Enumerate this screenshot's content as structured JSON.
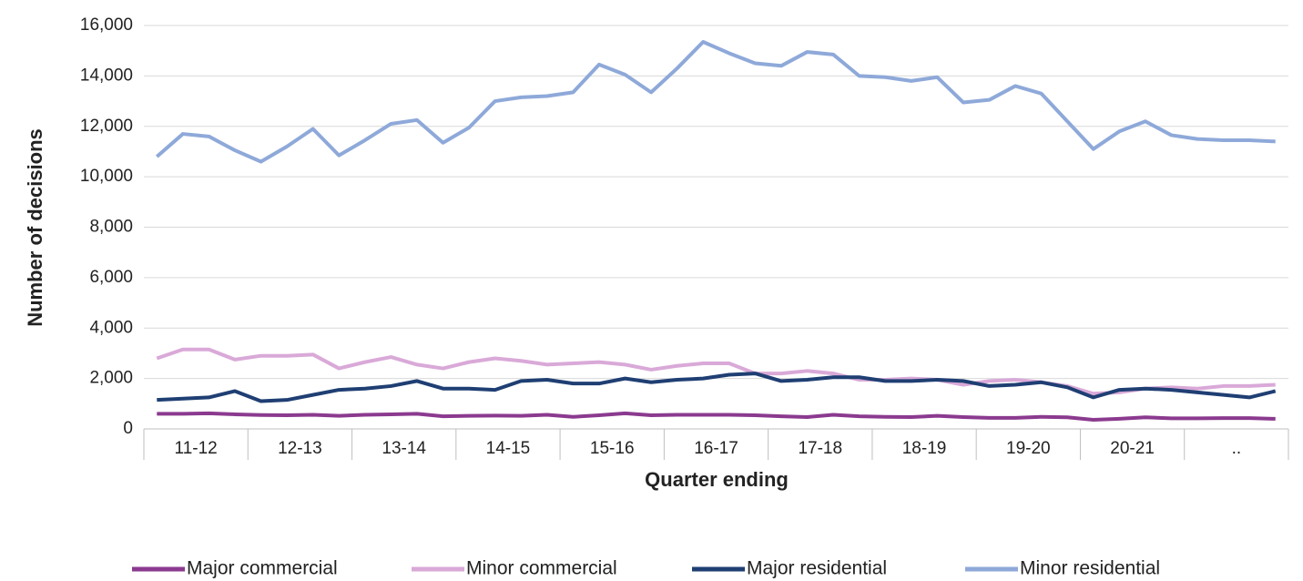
{
  "chart_data": {
    "type": "line",
    "y_label": "Number of decisions",
    "x_label": "Quarter ending",
    "categories": [
      "11-12",
      null,
      null,
      null,
      "12-13",
      null,
      null,
      null,
      "13-14",
      null,
      null,
      null,
      "14-15",
      null,
      null,
      null,
      "15-16",
      null,
      null,
      null,
      "16-17",
      null,
      null,
      null,
      "17-18",
      null,
      null,
      null,
      "18-19",
      null,
      null,
      null,
      "19-20",
      null,
      null,
      null,
      "20-21",
      null,
      null,
      null,
      "..",
      null,
      null,
      null
    ],
    "series": [
      {
        "name": "Major commercial",
        "color": "#8b3a8f",
        "values": [
          600,
          600,
          620,
          580,
          550,
          540,
          560,
          520,
          560,
          580,
          600,
          500,
          520,
          530,
          520,
          560,
          480,
          540,
          620,
          540,
          560,
          560,
          560,
          540,
          500,
          470,
          560,
          500,
          480,
          470,
          520,
          470,
          440,
          440,
          480,
          460,
          360,
          400,
          460,
          420,
          420,
          430,
          430,
          400
        ]
      },
      {
        "name": "Minor commercial",
        "color": "#d9a9d8",
        "values": [
          2800,
          3150,
          3150,
          2750,
          2900,
          2900,
          2950,
          2400,
          2650,
          2850,
          2550,
          2400,
          2650,
          2800,
          2700,
          2550,
          2600,
          2650,
          2550,
          2350,
          2500,
          2600,
          2600,
          2200,
          2200,
          2300,
          2200,
          1950,
          1950,
          2000,
          1950,
          1750,
          1900,
          1950,
          1850,
          1700,
          1400,
          1450,
          1600,
          1650,
          1600,
          1700,
          1700,
          1750
        ]
      },
      {
        "name": "Major residential",
        "color": "#1f3f73",
        "values": [
          1150,
          1200,
          1250,
          1500,
          1100,
          1150,
          1350,
          1550,
          1600,
          1700,
          1900,
          1600,
          1600,
          1550,
          1900,
          1950,
          1800,
          1800,
          2000,
          1850,
          1950,
          2000,
          2150,
          2200,
          1900,
          1950,
          2050,
          2050,
          1900,
          1900,
          1950,
          1900,
          1700,
          1750,
          1850,
          1650,
          1250,
          1550,
          1600,
          1550,
          1450,
          1350,
          1250,
          1500
        ]
      },
      {
        "name": "Minor residential",
        "color": "#8ea9d9",
        "values": [
          10800,
          11700,
          11600,
          11050,
          10600,
          11200,
          11900,
          10850,
          11450,
          12100,
          12250,
          11350,
          11950,
          13000,
          13150,
          13200,
          13350,
          14450,
          14050,
          13350,
          14300,
          15350,
          14900,
          14500,
          14400,
          14950,
          14850,
          14000,
          13950,
          13800,
          13950,
          12950,
          13050,
          13600,
          13300,
          12200,
          11100,
          11800,
          12200,
          11650,
          11500,
          11450,
          11450,
          11400
        ]
      }
    ],
    "ylim": [
      0,
      16000
    ],
    "yticks": [
      0,
      {
        "value": 2000,
        "label": "2,000"
      },
      {
        "value": 4000,
        "label": "4,000"
      },
      {
        "value": 6000,
        "label": "6,000"
      },
      {
        "value": 8000,
        "label": "8,000"
      },
      {
        "value": 10000,
        "label": "10,000"
      },
      {
        "value": 12000,
        "label": "12,000"
      },
      {
        "value": 14000,
        "label": "14,000"
      },
      {
        "value": 16000,
        "label": "16,000"
      }
    ],
    "grid": true,
    "legend": "bottom"
  }
}
